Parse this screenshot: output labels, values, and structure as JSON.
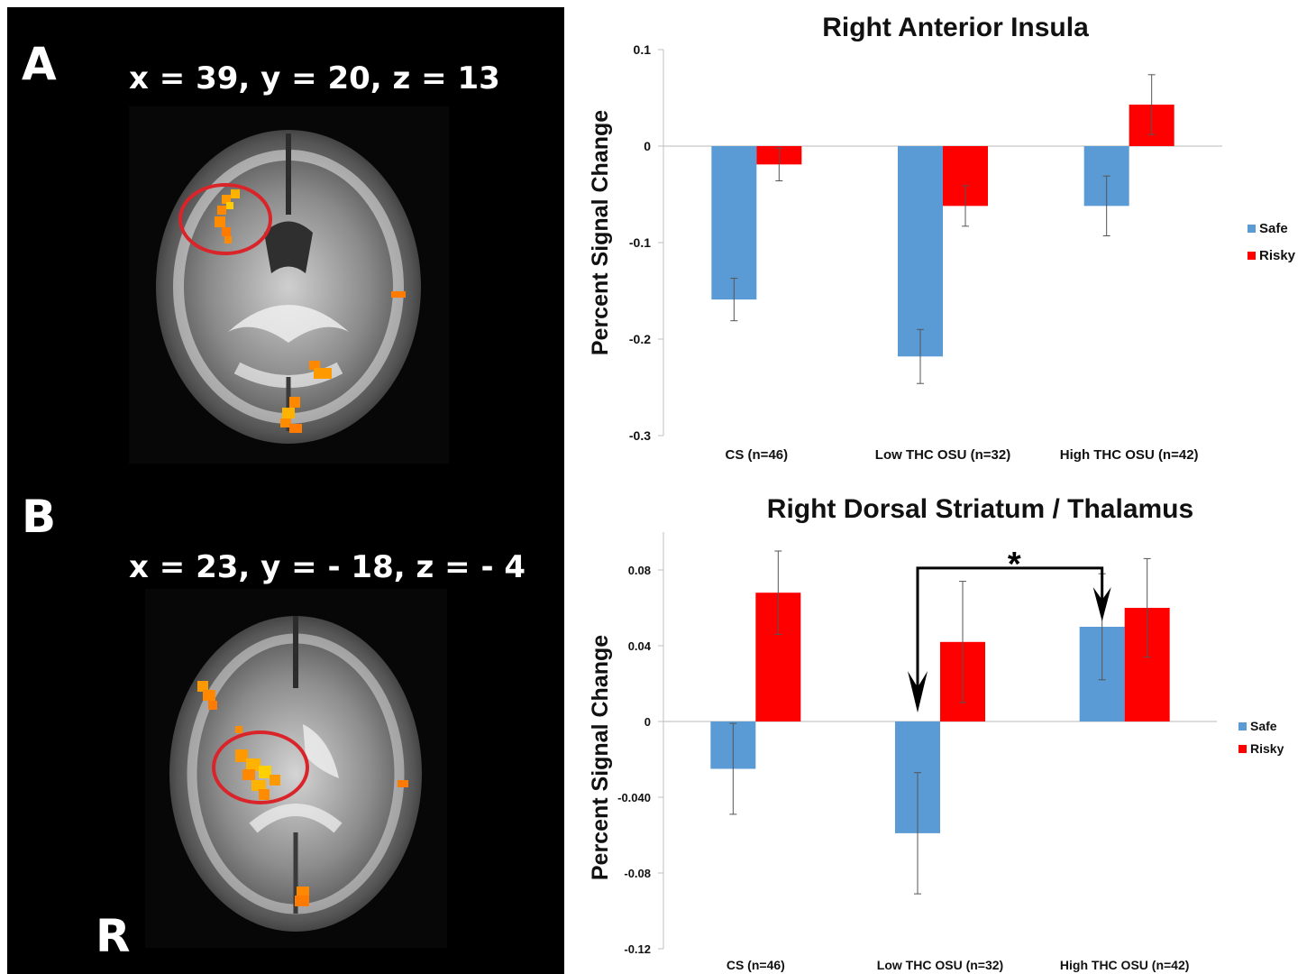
{
  "panel_a": {
    "letter": "A",
    "coords": "x = 39, y = 20, z = 13"
  },
  "panel_b": {
    "letter": "B",
    "coords": "x = 23, y = - 18, z = - 4",
    "orientation": "R"
  },
  "colors": {
    "safe": "#5b9bd5",
    "risky": "#ff0000",
    "activation": "#ff8c00",
    "roi_circle": "#d9252a"
  },
  "chart_data": [
    {
      "type": "bar",
      "title": "Right Anterior Insula",
      "ylabel": "Percent Signal Change",
      "xlabel": "",
      "categories": [
        "CS (n=46)",
        "Low THC OSU (n=32)",
        "High THC OSU (n=42)"
      ],
      "ylim": [
        -0.3,
        0.1
      ],
      "yticks": [
        0.1,
        0,
        -0.1,
        -0.2,
        -0.3
      ],
      "ytick_labels": [
        "0.1",
        "0",
        "-0.1",
        "-0.2",
        "-0.3"
      ],
      "series": [
        {
          "name": "Safe",
          "values": [
            -0.159,
            -0.218,
            -0.062
          ],
          "errors": [
            0.022,
            0.028,
            0.031
          ]
        },
        {
          "name": "Risky",
          "values": [
            -0.019,
            -0.062,
            0.043
          ],
          "errors": [
            0.017,
            0.021,
            0.031
          ]
        }
      ],
      "legend": "right",
      "grid": false
    },
    {
      "type": "bar",
      "title": "Right Dorsal Striatum / Thalamus",
      "ylabel": "Percent Signal Change",
      "xlabel": "",
      "categories": [
        "CS (n=46)",
        "Low THC OSU (n=32)",
        "High THC OSU (n=42)"
      ],
      "ylim": [
        -0.12,
        0.1
      ],
      "yticks": [
        0.08,
        0.04,
        0,
        -0.04,
        -0.08,
        -0.12
      ],
      "ytick_labels": [
        "0.08",
        "0.04",
        "0",
        "-0.040",
        "-0.08",
        "-0.12"
      ],
      "series": [
        {
          "name": "Safe",
          "values": [
            -0.025,
            -0.059,
            0.05
          ],
          "errors": [
            0.024,
            0.032,
            0.028
          ]
        },
        {
          "name": "Risky",
          "values": [
            0.068,
            0.042,
            0.06
          ],
          "errors": [
            0.022,
            0.032,
            0.026
          ]
        }
      ],
      "annotation": "*",
      "legend": "right",
      "grid": false
    }
  ]
}
